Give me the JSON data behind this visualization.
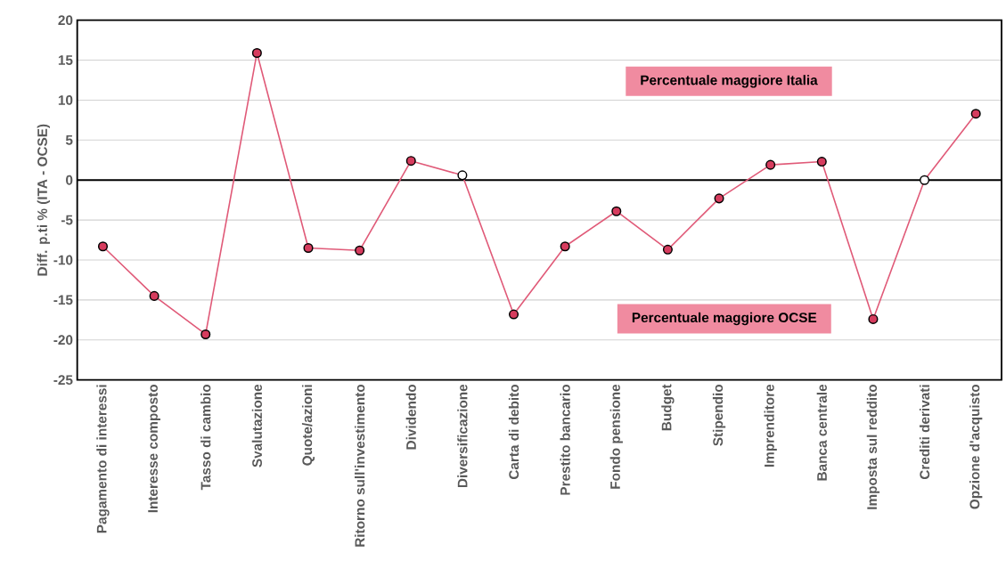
{
  "chart_data": {
    "type": "line",
    "ylabel": "Diff. p.ti % (ITA - OCSE)",
    "categories": [
      "Pagamento di interessi",
      "Interesse composto",
      "Tasso di cambio",
      "Svalutazione",
      "Quote/azioni",
      "Ritorno sull'investimento",
      "Dividendo",
      "Diversificazione",
      "Carta di debito",
      "Prestito bancario",
      "Fondo pensione",
      "Budget",
      "Stipendio",
      "Imprenditore",
      "Banca centrale",
      "Imposta sul reddito",
      "Crediti derivati",
      "Opzione d'acquisto"
    ],
    "series": [
      {
        "color": "#e05a78",
        "values": [
          -8.3,
          -14.5,
          -19.3,
          15.9,
          -8.5,
          -8.8,
          2.4,
          0.6,
          -16.8,
          -8.3,
          -3.9,
          -8.7,
          -2.3,
          1.9,
          2.3,
          -17.4,
          0,
          8.3
        ],
        "colors": [
          "#d63c5e",
          "#d63c5e",
          "#d63c5e",
          "#d63c5e",
          "#d63c5e",
          "#d63c5e",
          "#d63c5e",
          "#ffffff",
          "#d63c5e",
          "#d63c5e",
          "#d63c5e",
          "#d63c5e",
          "#d63c5e",
          "#d63c5e",
          "#d63c5e",
          "#d63c5e",
          "#ffffff",
          "#d63c5e"
        ]
      }
    ],
    "ylim": [
      -25,
      20
    ],
    "yticks": [
      -25,
      -20,
      -15,
      -10,
      -5,
      0,
      5,
      10,
      15,
      20
    ],
    "grid": "y",
    "marker": "circle",
    "line_style": "solid",
    "ref_lines": [
      {
        "axis": "y",
        "value": 0,
        "color": "#000000"
      }
    ],
    "annotations": [
      "Percentuale maggiore Italia",
      "Percentuale maggiore OCSE"
    ]
  }
}
